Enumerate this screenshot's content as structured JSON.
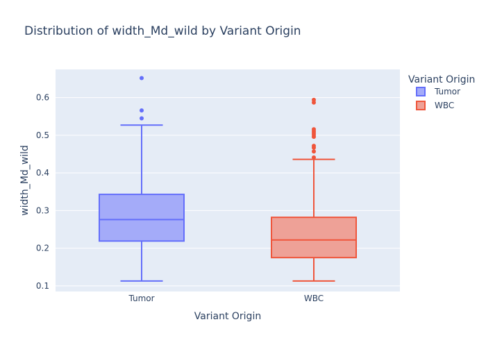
{
  "chart_data": {
    "type": "box",
    "title": "Distribution of width_Md_wild by Variant Origin",
    "xlabel": "Variant Origin",
    "ylabel": "width_Md_wild",
    "categories": [
      "Tumor",
      "WBC"
    ],
    "yticks": [
      "0.1",
      "0.2",
      "0.3",
      "0.4",
      "0.5",
      "0.6"
    ],
    "ylim": [
      0.085,
      0.675
    ],
    "grid": true,
    "legend": {
      "title": "Variant Origin",
      "placement": "top-right"
    },
    "series": [
      {
        "name": "Tumor",
        "category": "Tumor",
        "color": "#636efa",
        "fill": "#a4abf9",
        "min": 0.113,
        "q1": 0.219,
        "median": 0.276,
        "q3": 0.343,
        "max": 0.527,
        "outliers": [
          0.545,
          0.566,
          0.652
        ]
      },
      {
        "name": "WBC",
        "category": "WBC",
        "color": "#ef553b",
        "fill": "#eea197",
        "min": 0.113,
        "q1": 0.175,
        "median": 0.222,
        "q3": 0.282,
        "max": 0.436,
        "outliers": [
          0.441,
          0.457,
          0.467,
          0.472,
          0.496,
          0.501,
          0.506,
          0.511,
          0.516,
          0.587,
          0.594
        ]
      }
    ]
  }
}
